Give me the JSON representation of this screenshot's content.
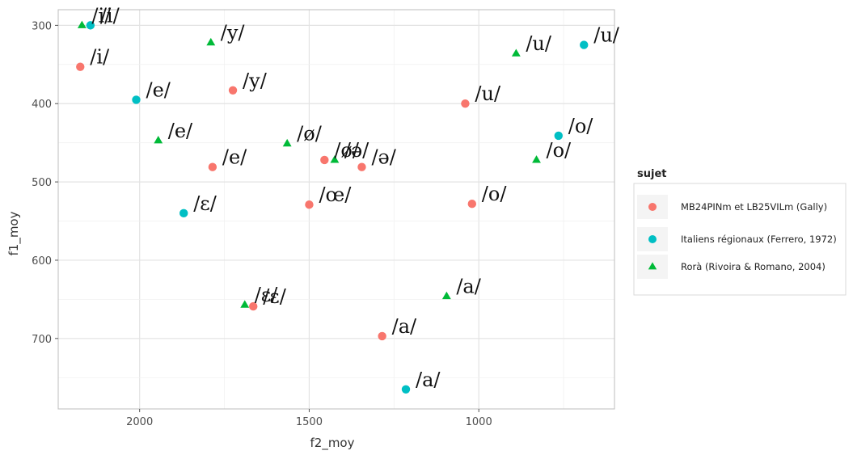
{
  "chart_data": {
    "type": "scatter",
    "xlabel": "f2_moy",
    "ylabel": "f1_moy",
    "x_reversed": true,
    "y_reversed": true,
    "xlim": [
      2240,
      600
    ],
    "ylim": [
      280,
      790
    ],
    "x_ticks": [
      2000,
      1500,
      1000
    ],
    "y_ticks": [
      300,
      400,
      500,
      600,
      700
    ],
    "grid": true,
    "legend_title": "sujet",
    "legend_position": "right",
    "series": [
      {
        "name": "MB24PINm et LB25VILm (Gally)",
        "color": "#F8766D",
        "marker": "circle",
        "points": [
          {
            "x": 2175,
            "y": 353,
            "label": "/i/"
          },
          {
            "x": 1725,
            "y": 383,
            "label": "/y/"
          },
          {
            "x": 1040,
            "y": 400,
            "label": "/u/"
          },
          {
            "x": 1785,
            "y": 481,
            "label": "/e/"
          },
          {
            "x": 1455,
            "y": 472,
            "label": "/ø/"
          },
          {
            "x": 1345,
            "y": 481,
            "label": "/ə/"
          },
          {
            "x": 1500,
            "y": 529,
            "label": "/œ/"
          },
          {
            "x": 1020,
            "y": 528,
            "label": "/o/"
          },
          {
            "x": 1665,
            "y": 659,
            "label": "/ε/"
          },
          {
            "x": 1285,
            "y": 697,
            "label": "/a/"
          }
        ]
      },
      {
        "name": "Italiens régionaux (Ferrero, 1972)",
        "color": "#00BFC4",
        "marker": "circle",
        "points": [
          {
            "x": 2145,
            "y": 300,
            "label": "/i/"
          },
          {
            "x": 2010,
            "y": 395,
            "label": "/e/"
          },
          {
            "x": 1870,
            "y": 540,
            "label": "/ε/"
          },
          {
            "x": 1215,
            "y": 765,
            "label": "/a/"
          },
          {
            "x": 765,
            "y": 441,
            "label": "/o/"
          },
          {
            "x": 690,
            "y": 325,
            "label": "/u/"
          }
        ]
      },
      {
        "name": "Rorà (Rivoira & Romano, 2004)",
        "color": "#00BA38",
        "marker": "triangle",
        "points": [
          {
            "x": 2170,
            "y": 300,
            "label": "/i/"
          },
          {
            "x": 1790,
            "y": 322,
            "label": "/y/"
          },
          {
            "x": 1945,
            "y": 447,
            "label": "/e/"
          },
          {
            "x": 1565,
            "y": 451,
            "label": "/ø/"
          },
          {
            "x": 1425,
            "y": 472,
            "label": "/ə/"
          },
          {
            "x": 1690,
            "y": 657,
            "label": "/ε/"
          },
          {
            "x": 1095,
            "y": 646,
            "label": "/a/"
          },
          {
            "x": 890,
            "y": 336,
            "label": "/u/"
          },
          {
            "x": 830,
            "y": 472,
            "label": "/o/"
          }
        ]
      }
    ]
  }
}
